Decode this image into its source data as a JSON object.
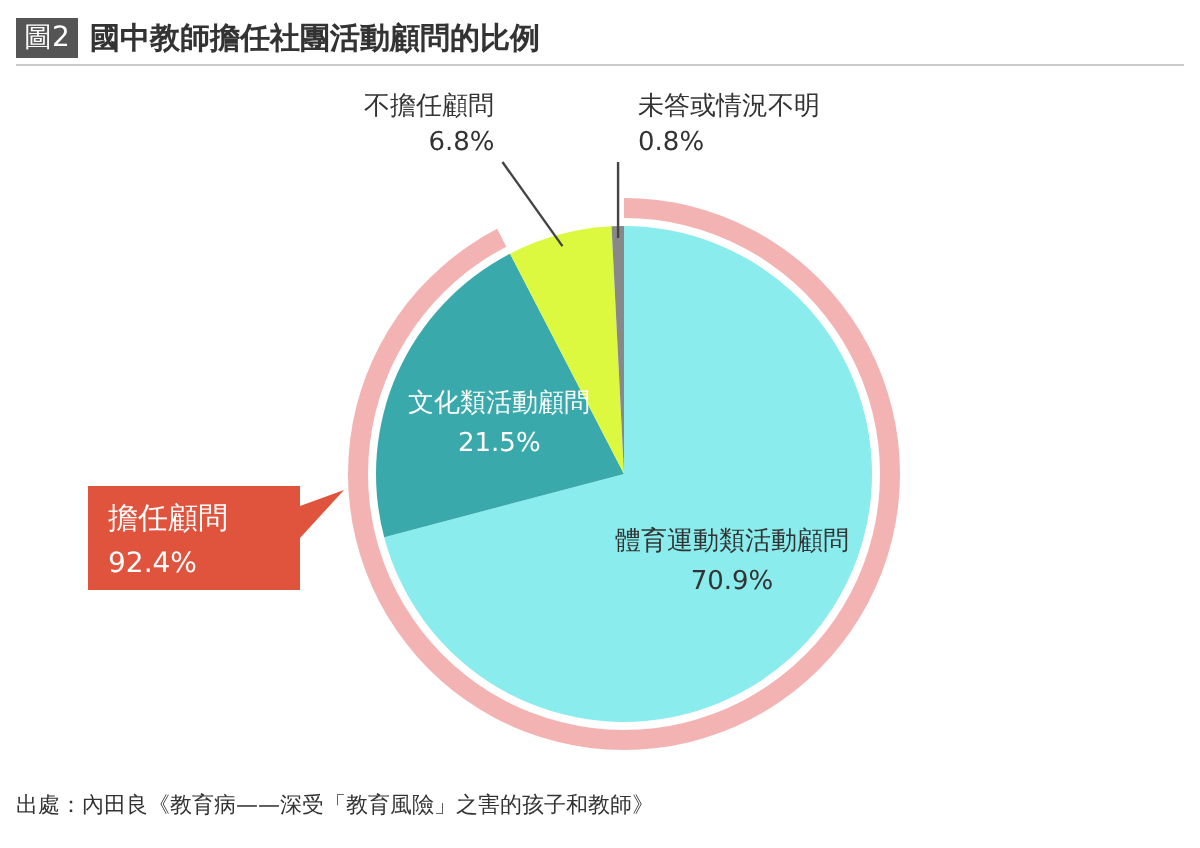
{
  "chart_data": {
    "type": "pie",
    "title": "國中教師擔任社團活動顧問的比例",
    "legend": false,
    "annotations": [
      "圖2",
      "出處：內田良《教育病——深受「教育風險」之害的孩子和教師》",
      "擔任顧問\n92.4%"
    ],
    "categories": [
      "體育運動類活動顧問",
      "文化類活動顧問",
      "不擔任顧問",
      "未答或情況不明"
    ],
    "values": [
      70.9,
      21.5,
      6.8,
      0.8
    ],
    "value_labels": [
      "70.9%",
      "21.5%",
      "6.8%",
      "0.8%"
    ],
    "colors": [
      "#8aeced",
      "#3aa9ab",
      "#dcf93f",
      "#888888"
    ]
  }
}
